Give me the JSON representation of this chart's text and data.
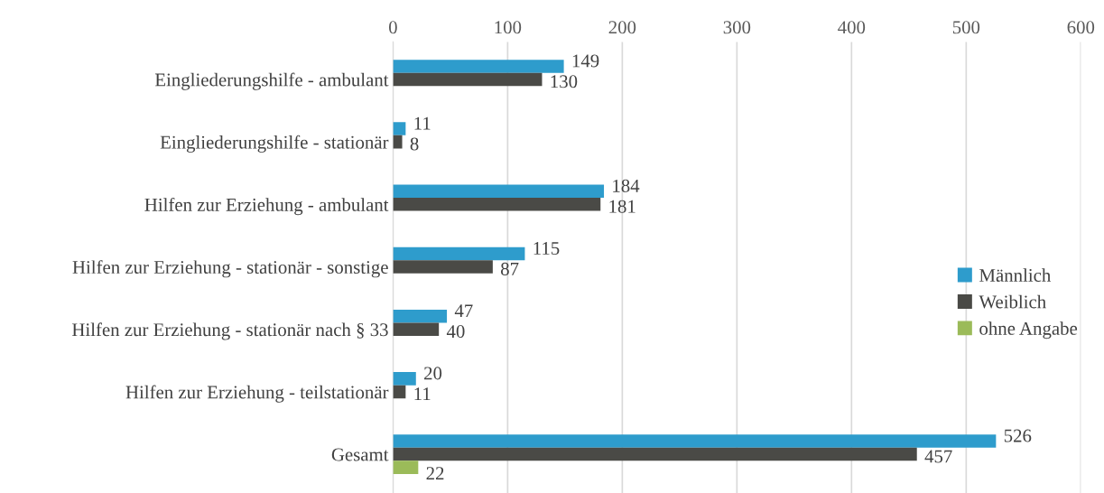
{
  "chart_data": {
    "type": "bar",
    "orientation": "horizontal",
    "categories": [
      "Eingliederungshilfe - ambulant",
      "Eingliederungshilfe - stationär",
      "Hilfen zur Erziehung - ambulant",
      "Hilfen zur Erziehung - stationär - sonstige",
      "Hilfen zur Erziehung - stationär nach § 33",
      "Hilfen zur Erziehung - teilstationär",
      "Gesamt"
    ],
    "series": [
      {
        "name": "Männlich",
        "color": "#2e9ccc",
        "values": [
          149,
          11,
          184,
          115,
          47,
          20,
          526
        ]
      },
      {
        "name": "Weiblich",
        "color": "#4a4a46",
        "values": [
          130,
          8,
          181,
          87,
          40,
          11,
          457
        ]
      },
      {
        "name": "ohne Angabe",
        "color": "#9bbb59",
        "values": [
          null,
          null,
          null,
          null,
          null,
          null,
          22
        ]
      }
    ],
    "xlim": [
      0,
      600
    ],
    "xticks": [
      0,
      100,
      200,
      300,
      400,
      500,
      600
    ],
    "grid": "x",
    "legend": "right",
    "data_labels": true
  }
}
